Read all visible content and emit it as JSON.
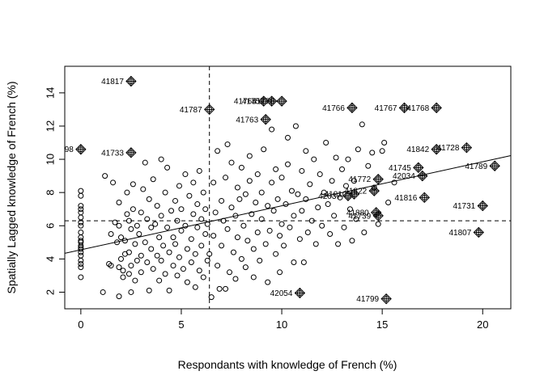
{
  "chart_data": {
    "type": "scatter",
    "title": "",
    "xlabel": "Respondants with knowledge of French (%)",
    "ylabel": "Spatially Lagged knowledge of French (%)",
    "xlim": [
      -0.8,
      21.4
    ],
    "ylim": [
      1.0,
      15.6
    ],
    "xticks": [
      0,
      5,
      10,
      15,
      20
    ],
    "yticks": [
      2,
      4,
      6,
      8,
      10,
      12,
      14
    ],
    "grid": false,
    "legend": "none",
    "mean_x": 6.4,
    "mean_y": 6.3,
    "regression_line": {
      "intercept": 4.55,
      "slope": 0.265
    },
    "influential_points": [
      {
        "x": 2.5,
        "y": 14.7,
        "label": "41817"
      },
      {
        "x": 6.4,
        "y": 13.0,
        "label": "41787"
      },
      {
        "x": 9.1,
        "y": 13.5,
        "label": "41765"
      },
      {
        "x": 9.5,
        "y": 13.5,
        "label": "41757"
      },
      {
        "x": 10.0,
        "y": 13.5,
        "label": "41776"
      },
      {
        "x": 9.2,
        "y": 12.4,
        "label": "41763"
      },
      {
        "x": 13.5,
        "y": 13.1,
        "label": "41766"
      },
      {
        "x": 16.1,
        "y": 13.1,
        "label": "41767"
      },
      {
        "x": 17.7,
        "y": 13.1,
        "label": "41768"
      },
      {
        "x": 0.0,
        "y": 10.6,
        "label": "98"
      },
      {
        "x": 2.5,
        "y": 10.4,
        "label": "41733"
      },
      {
        "x": 17.7,
        "y": 10.6,
        "label": "41842"
      },
      {
        "x": 19.2,
        "y": 10.7,
        "label": "41728"
      },
      {
        "x": 16.8,
        "y": 9.5,
        "label": "41745"
      },
      {
        "x": 20.6,
        "y": 9.6,
        "label": "41789"
      },
      {
        "x": 14.8,
        "y": 8.8,
        "label": "41772"
      },
      {
        "x": 17.0,
        "y": 9.0,
        "label": "42034"
      },
      {
        "x": 13.3,
        "y": 7.8,
        "label": "42037"
      },
      {
        "x": 13.6,
        "y": 7.9,
        "label": "41810"
      },
      {
        "x": 14.6,
        "y": 8.1,
        "label": "41822"
      },
      {
        "x": 17.1,
        "y": 7.7,
        "label": "41816"
      },
      {
        "x": 14.7,
        "y": 6.8,
        "label": "41880"
      },
      {
        "x": 14.8,
        "y": 6.6,
        "label": "41739"
      },
      {
        "x": 20.0,
        "y": 7.2,
        "label": "41731"
      },
      {
        "x": 19.8,
        "y": 5.6,
        "label": "41807"
      },
      {
        "x": 10.9,
        "y": 1.95,
        "label": "42054"
      },
      {
        "x": 15.2,
        "y": 1.6,
        "label": "41799"
      }
    ],
    "points": [
      [
        0,
        2.9
      ],
      [
        0,
        3.5
      ],
      [
        0,
        3.7
      ],
      [
        0,
        3.9
      ],
      [
        0,
        4.2
      ],
      [
        0,
        4.4
      ],
      [
        0,
        4.6
      ],
      [
        0,
        4.7
      ],
      [
        0,
        4.8
      ],
      [
        0,
        5.0
      ],
      [
        0,
        5.1
      ],
      [
        0,
        5.3
      ],
      [
        0,
        5.6
      ],
      [
        0,
        6.0
      ],
      [
        0,
        6.2
      ],
      [
        0,
        6.5
      ],
      [
        0,
        6.8
      ],
      [
        0,
        7.0
      ],
      [
        0,
        7.2
      ],
      [
        0,
        7.8
      ],
      [
        0,
        8.1
      ],
      [
        1.1,
        2.0
      ],
      [
        1.2,
        9.0
      ],
      [
        1.4,
        3.7
      ],
      [
        1.5,
        3.6
      ],
      [
        1.5,
        5.5
      ],
      [
        1.6,
        8.6
      ],
      [
        1.7,
        6.2
      ],
      [
        1.8,
        5.0
      ],
      [
        1.9,
        3.5
      ],
      [
        1.9,
        6.0
      ],
      [
        1.9,
        7.4
      ],
      [
        1.9,
        1.75
      ],
      [
        2.0,
        4.0
      ],
      [
        2.0,
        5.3
      ],
      [
        2.1,
        2.9
      ],
      [
        2.1,
        3.3
      ],
      [
        2.2,
        4.3
      ],
      [
        2.2,
        5.1
      ],
      [
        2.3,
        6.7
      ],
      [
        2.3,
        8.0
      ],
      [
        2.4,
        3.1
      ],
      [
        2.4,
        4.4
      ],
      [
        2.4,
        6.3
      ],
      [
        2.5,
        2.0
      ],
      [
        2.5,
        3.6
      ],
      [
        2.5,
        5.8
      ],
      [
        2.6,
        7.0
      ],
      [
        2.6,
        8.5
      ],
      [
        2.7,
        2.7
      ],
      [
        2.7,
        4.9
      ],
      [
        2.8,
        3.9
      ],
      [
        2.8,
        6.0
      ],
      [
        2.9,
        5.5
      ],
      [
        3.0,
        3.2
      ],
      [
        3.0,
        4.2
      ],
      [
        3.0,
        6.8
      ],
      [
        3.1,
        8.2
      ],
      [
        3.2,
        9.8
      ],
      [
        3.2,
        5.0
      ],
      [
        3.3,
        3.8
      ],
      [
        3.3,
        6.4
      ],
      [
        3.4,
        2.1
      ],
      [
        3.4,
        7.6
      ],
      [
        3.5,
        4.6
      ],
      [
        3.5,
        5.9
      ],
      [
        3.6,
        3.4
      ],
      [
        3.6,
        8.8
      ],
      [
        3.7,
        6.1
      ],
      [
        3.8,
        4.2
      ],
      [
        3.8,
        7.2
      ],
      [
        3.9,
        2.7
      ],
      [
        3.9,
        5.3
      ],
      [
        4.0,
        3.9
      ],
      [
        4.0,
        6.6
      ],
      [
        4.0,
        10.0
      ],
      [
        4.1,
        4.8
      ],
      [
        4.2,
        3.1
      ],
      [
        4.2,
        8.0
      ],
      [
        4.3,
        5.9
      ],
      [
        4.3,
        9.5
      ],
      [
        4.4,
        2.1
      ],
      [
        4.4,
        4.4
      ],
      [
        4.5,
        6.9
      ],
      [
        4.6,
        3.6
      ],
      [
        4.6,
        5.3
      ],
      [
        4.7,
        7.5
      ],
      [
        4.7,
        4.9
      ],
      [
        4.8,
        3.0
      ],
      [
        4.8,
        6.3
      ],
      [
        4.9,
        8.4
      ],
      [
        4.9,
        4.1
      ],
      [
        5.0,
        5.7
      ],
      [
        5.0,
        7.0
      ],
      [
        5.1,
        3.4
      ],
      [
        5.2,
        6.0
      ],
      [
        5.2,
        9.1
      ],
      [
        5.3,
        4.6
      ],
      [
        5.3,
        2.6
      ],
      [
        5.4,
        7.8
      ],
      [
        5.5,
        5.2
      ],
      [
        5.5,
        3.8
      ],
      [
        5.6,
        6.7
      ],
      [
        5.6,
        8.6
      ],
      [
        5.7,
        2.3
      ],
      [
        5.7,
        4.3
      ],
      [
        5.8,
        7.3
      ],
      [
        5.8,
        5.9
      ],
      [
        5.9,
        3.3
      ],
      [
        5.9,
        9.3
      ],
      [
        6.0,
        6.4
      ],
      [
        6.0,
        4.8
      ],
      [
        6.1,
        8.0
      ],
      [
        6.1,
        2.9
      ],
      [
        6.2,
        5.5
      ],
      [
        6.2,
        7.0
      ],
      [
        6.3,
        3.9
      ],
      [
        6.3,
        6.1
      ],
      [
        6.4,
        4.3
      ],
      [
        6.5,
        1.7
      ],
      [
        6.6,
        8.6
      ],
      [
        6.6,
        5.4
      ],
      [
        6.7,
        6.8
      ],
      [
        6.8,
        3.6
      ],
      [
        6.8,
        10.5
      ],
      [
        6.9,
        2.2
      ],
      [
        7.0,
        7.5
      ],
      [
        7.0,
        4.8
      ],
      [
        7.1,
        6.3
      ],
      [
        7.2,
        2.2
      ],
      [
        7.2,
        8.9
      ],
      [
        7.3,
        5.8
      ],
      [
        7.3,
        10.9
      ],
      [
        7.4,
        3.2
      ],
      [
        7.5,
        7.1
      ],
      [
        7.5,
        9.8
      ],
      [
        7.6,
        4.4
      ],
      [
        7.7,
        6.6
      ],
      [
        7.7,
        2.8
      ],
      [
        7.8,
        8.3
      ],
      [
        7.8,
        5.3
      ],
      [
        7.9,
        7.6
      ],
      [
        8.0,
        4.0
      ],
      [
        8.0,
        9.5
      ],
      [
        8.1,
        6.0
      ],
      [
        8.2,
        3.5
      ],
      [
        8.2,
        7.9
      ],
      [
        8.3,
        5.1
      ],
      [
        8.4,
        8.7
      ],
      [
        8.4,
        10.2
      ],
      [
        8.5,
        6.7
      ],
      [
        8.6,
        2.9
      ],
      [
        8.6,
        4.6
      ],
      [
        8.7,
        7.4
      ],
      [
        8.8,
        9.1
      ],
      [
        8.8,
        5.6
      ],
      [
        8.9,
        3.9
      ],
      [
        9.0,
        6.4
      ],
      [
        9.0,
        8.0
      ],
      [
        9.1,
        10.6
      ],
      [
        9.2,
        4.9
      ],
      [
        9.3,
        7.2
      ],
      [
        9.3,
        2.6
      ],
      [
        9.4,
        5.7
      ],
      [
        9.5,
        8.6
      ],
      [
        9.5,
        11.8
      ],
      [
        9.6,
        6.9
      ],
      [
        9.7,
        4.3
      ],
      [
        9.7,
        9.4
      ],
      [
        9.8,
        7.6
      ],
      [
        9.9,
        3.2
      ],
      [
        9.9,
        5.4
      ],
      [
        10.0,
        8.9
      ],
      [
        10.0,
        6.1
      ],
      [
        10.1,
        4.8
      ],
      [
        10.2,
        7.3
      ],
      [
        10.3,
        11.3
      ],
      [
        10.3,
        9.7
      ],
      [
        10.4,
        5.9
      ],
      [
        10.5,
        8.1
      ],
      [
        10.6,
        3.8
      ],
      [
        10.6,
        6.6
      ],
      [
        10.7,
        12.0
      ],
      [
        10.8,
        7.9
      ],
      [
        10.9,
        5.2
      ],
      [
        11.0,
        9.3
      ],
      [
        11.0,
        6.9
      ],
      [
        11.1,
        3.8
      ],
      [
        11.2,
        10.5
      ],
      [
        11.2,
        7.6
      ],
      [
        11.3,
        5.6
      ],
      [
        11.4,
        8.5
      ],
      [
        11.5,
        6.3
      ],
      [
        11.6,
        10.0
      ],
      [
        11.7,
        4.9
      ],
      [
        11.8,
        7.1
      ],
      [
        11.9,
        9.1
      ],
      [
        12.0,
        6.0
      ],
      [
        12.1,
        8.0
      ],
      [
        12.2,
        11.0
      ],
      [
        12.3,
        7.3
      ],
      [
        12.4,
        5.5
      ],
      [
        12.5,
        8.7
      ],
      [
        12.6,
        6.6
      ],
      [
        12.7,
        10.1
      ],
      [
        12.8,
        4.9
      ],
      [
        12.9,
        7.7
      ],
      [
        13.0,
        9.4
      ],
      [
        13.1,
        5.9
      ],
      [
        13.2,
        8.4
      ],
      [
        13.3,
        10.0
      ],
      [
        13.4,
        7.0
      ],
      [
        13.5,
        5.1
      ],
      [
        13.6,
        8.7
      ],
      [
        13.7,
        6.4
      ],
      [
        13.8,
        10.6
      ],
      [
        14.0,
        12.1
      ],
      [
        14.1,
        5.6
      ],
      [
        14.3,
        9.6
      ],
      [
        14.5,
        10.4
      ],
      [
        14.6,
        8.3
      ],
      [
        14.8,
        6.1
      ],
      [
        15.0,
        10.5
      ],
      [
        15.1,
        11.0
      ],
      [
        15.3,
        7.4
      ],
      [
        15.6,
        8.6
      ]
    ]
  }
}
